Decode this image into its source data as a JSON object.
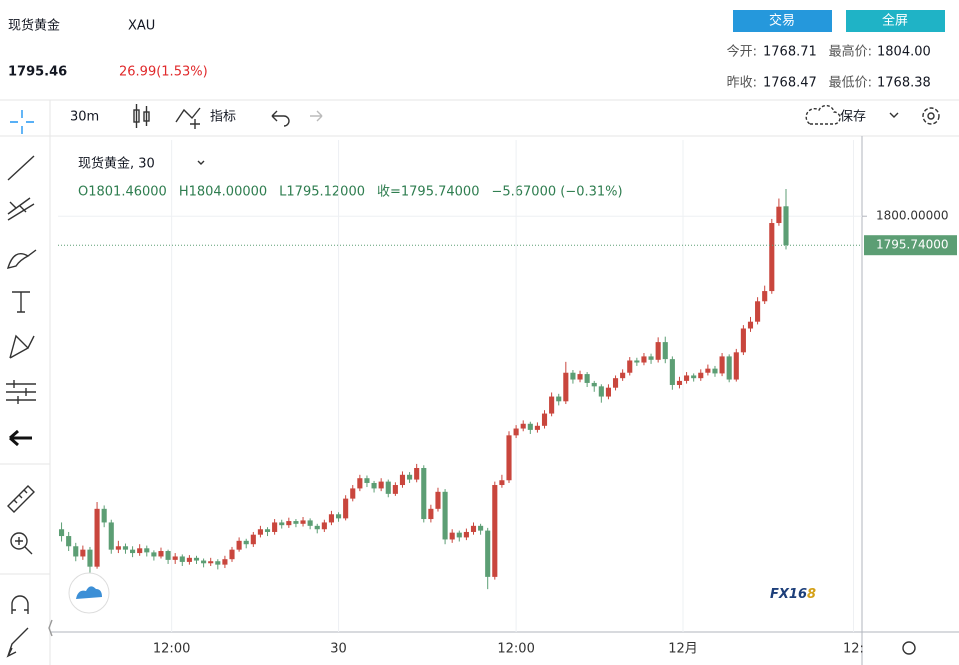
{
  "header": {
    "name": "现货黄金",
    "symbol": "XAU",
    "price": "1795.46",
    "change": "26.99(1.53%)",
    "buttons": [
      "交易",
      "全屏"
    ],
    "stats": [
      [
        "今开:",
        "1768.71",
        "最高价:",
        "1804.00"
      ],
      [
        "昨收:",
        "1768.47",
        "最低价:",
        "1768.38"
      ]
    ]
  },
  "toolbar": {
    "interval": "30m",
    "indicators": "指标",
    "save": "保存"
  },
  "watermark": [
    "FX16",
    "8"
  ],
  "chart_data": {
    "type": "candlestick",
    "legend_title": "现货黄金, 30",
    "ohlc_labels": [
      "O1801.46000",
      "H1804.00000",
      "L1795.12000",
      "收=1795.74000",
      "−5.67000 (−0.31%)"
    ],
    "x": [
      0,
      1,
      2,
      3,
      4,
      5,
      6,
      7,
      8,
      9,
      10,
      11,
      12,
      13,
      14,
      15,
      16,
      17,
      18,
      19,
      20,
      21,
      22,
      23,
      24,
      25,
      26,
      27,
      28,
      29,
      30,
      31,
      32,
      33,
      34,
      35,
      36,
      37,
      38,
      39,
      40,
      41,
      42,
      43,
      44,
      45,
      46,
      47,
      48,
      49,
      50,
      51,
      52,
      53,
      54,
      55,
      56,
      57,
      58,
      59,
      60,
      61,
      62,
      63,
      64,
      65,
      66,
      67,
      68,
      69,
      70,
      71,
      72,
      73,
      74,
      75,
      76,
      77,
      78,
      79,
      80,
      81,
      82,
      83,
      84,
      85,
      86,
      87,
      88,
      89,
      90,
      91,
      92,
      93,
      94,
      95,
      96,
      97,
      98,
      99,
      100,
      101,
      102
    ],
    "open": [
      1754.0,
      1753.0,
      1751.5,
      1750.0,
      1751.0,
      1748.5,
      1757.0,
      1755.0,
      1751.0,
      1751.5,
      1751.0,
      1750.5,
      1751.2,
      1750.6,
      1750.0,
      1750.8,
      1749.5,
      1750.0,
      1749.2,
      1749.8,
      1749.4,
      1749.0,
      1749.3,
      1748.8,
      1749.6,
      1751.0,
      1752.3,
      1751.8,
      1753.2,
      1754.0,
      1753.6,
      1755.0,
      1754.6,
      1755.2,
      1754.8,
      1755.3,
      1754.5,
      1754.0,
      1755.0,
      1756.2,
      1755.6,
      1758.5,
      1760.0,
      1761.5,
      1760.8,
      1760.0,
      1761.0,
      1759.2,
      1760.5,
      1762.0,
      1761.3,
      1763.0,
      1755.5,
      1757.0,
      1759.5,
      1752.5,
      1753.5,
      1752.8,
      1753.6,
      1754.5,
      1753.8,
      1747.0,
      1760.5,
      1761.2,
      1767.8,
      1768.8,
      1769.5,
      1768.6,
      1769.2,
      1771.0,
      1773.5,
      1772.8,
      1777.0,
      1776.0,
      1776.8,
      1775.5,
      1775.0,
      1773.5,
      1774.8,
      1776.2,
      1777.0,
      1778.8,
      1778.5,
      1779.4,
      1778.9,
      1781.5,
      1779.0,
      1775.2,
      1775.8,
      1776.6,
      1776.2,
      1777.0,
      1777.6,
      1776.9,
      1779.4,
      1776.0,
      1780.0,
      1783.5,
      1784.5,
      1787.5,
      1789.0,
      1799.0,
      1801.46
    ],
    "high": [
      1755.0,
      1753.6,
      1752.0,
      1751.6,
      1751.4,
      1758.0,
      1757.5,
      1755.4,
      1752.3,
      1751.9,
      1751.5,
      1751.8,
      1751.6,
      1750.9,
      1751.3,
      1751.0,
      1750.5,
      1750.3,
      1750.2,
      1750.1,
      1749.7,
      1749.8,
      1749.6,
      1750.1,
      1751.4,
      1752.8,
      1752.6,
      1753.6,
      1754.5,
      1754.3,
      1755.5,
      1755.4,
      1755.7,
      1755.5,
      1755.8,
      1755.6,
      1754.8,
      1755.4,
      1756.7,
      1756.5,
      1759.0,
      1760.5,
      1762.0,
      1761.9,
      1761.1,
      1761.5,
      1761.3,
      1760.9,
      1762.5,
      1762.4,
      1763.6,
      1763.4,
      1757.6,
      1760.1,
      1759.9,
      1754.0,
      1753.8,
      1754.1,
      1755.0,
      1754.8,
      1754.2,
      1761.0,
      1762.0,
      1768.4,
      1769.3,
      1770.0,
      1769.8,
      1769.7,
      1771.5,
      1774.1,
      1773.9,
      1778.6,
      1777.4,
      1777.3,
      1777.1,
      1775.8,
      1775.3,
      1775.3,
      1776.6,
      1777.5,
      1779.3,
      1779.2,
      1779.9,
      1779.8,
      1782.2,
      1782.3,
      1779.4,
      1776.4,
      1777.1,
      1776.9,
      1777.5,
      1778.2,
      1778.0,
      1779.9,
      1779.7,
      1780.5,
      1784.0,
      1785.2,
      1788.1,
      1789.8,
      1799.6,
      1802.6,
      1804.0
    ],
    "low": [
      1752.2,
      1750.8,
      1749.3,
      1749.5,
      1747.6,
      1748.2,
      1754.3,
      1750.4,
      1750.5,
      1750.4,
      1749.9,
      1750.1,
      1750.0,
      1749.4,
      1749.7,
      1748.9,
      1748.9,
      1748.6,
      1748.8,
      1748.9,
      1748.4,
      1748.6,
      1748.1,
      1748.3,
      1749.2,
      1750.7,
      1751.2,
      1751.4,
      1752.8,
      1753.0,
      1753.2,
      1754.1,
      1754.2,
      1754.3,
      1754.4,
      1754.0,
      1753.4,
      1753.6,
      1754.6,
      1755.1,
      1755.3,
      1758.1,
      1759.6,
      1760.2,
      1759.4,
      1759.6,
      1758.7,
      1758.9,
      1760.1,
      1760.8,
      1760.9,
      1755.0,
      1755.0,
      1756.6,
      1751.8,
      1752.0,
      1752.2,
      1752.4,
      1753.2,
      1753.2,
      1745.2,
      1746.6,
      1760.1,
      1760.8,
      1767.4,
      1768.4,
      1768.0,
      1768.2,
      1768.8,
      1770.6,
      1772.2,
      1772.4,
      1775.4,
      1775.6,
      1774.9,
      1774.2,
      1772.6,
      1773.1,
      1774.4,
      1775.8,
      1776.6,
      1778.0,
      1778.1,
      1778.3,
      1778.5,
      1778.4,
      1774.5,
      1774.7,
      1775.4,
      1775.7,
      1775.8,
      1776.6,
      1776.4,
      1776.5,
      1775.6,
      1775.7,
      1779.6,
      1783.0,
      1784.1,
      1787.1,
      1788.6,
      1798.6,
      1795.12
    ],
    "close": [
      1753.0,
      1751.5,
      1750.0,
      1751.0,
      1748.5,
      1757.0,
      1755.0,
      1751.0,
      1751.5,
      1751.0,
      1750.5,
      1751.2,
      1750.6,
      1750.0,
      1750.8,
      1749.5,
      1750.0,
      1749.2,
      1749.8,
      1749.4,
      1749.0,
      1749.3,
      1748.8,
      1749.6,
      1751.0,
      1752.3,
      1751.8,
      1753.2,
      1754.0,
      1753.6,
      1755.0,
      1754.6,
      1755.2,
      1754.8,
      1755.3,
      1754.5,
      1754.0,
      1755.0,
      1756.2,
      1755.6,
      1758.5,
      1760.0,
      1761.5,
      1760.8,
      1760.0,
      1761.0,
      1759.2,
      1760.5,
      1762.0,
      1761.3,
      1763.0,
      1755.5,
      1757.0,
      1759.5,
      1752.5,
      1753.5,
      1752.8,
      1753.6,
      1754.5,
      1753.8,
      1747.0,
      1760.5,
      1761.2,
      1767.8,
      1768.8,
      1769.5,
      1768.6,
      1769.2,
      1771.0,
      1773.5,
      1772.8,
      1777.0,
      1776.0,
      1776.8,
      1775.5,
      1775.0,
      1773.5,
      1774.8,
      1776.2,
      1777.0,
      1778.8,
      1778.5,
      1779.4,
      1778.9,
      1781.5,
      1779.0,
      1775.2,
      1775.8,
      1776.6,
      1776.2,
      1777.0,
      1777.6,
      1776.9,
      1779.4,
      1776.0,
      1780.0,
      1783.5,
      1784.5,
      1787.5,
      1789.0,
      1799.0,
      1801.4,
      1795.74
    ],
    "xlim": [
      -0.5,
      112.7
    ],
    "xticks": [
      {
        "value": 15.5,
        "label": "12:00"
      },
      {
        "value": 39,
        "label": "30"
      },
      {
        "value": 64,
        "label": "12:00"
      },
      {
        "value": 87.5,
        "label": "12月"
      },
      {
        "value": 111.5,
        "label": "12:"
      }
    ],
    "ylim": [
      1738.9,
      1811.2
    ],
    "yticks": [
      {
        "value": 1800,
        "label": "1800.00000"
      }
    ],
    "last_price": {
      "value": 1795.74,
      "label": "1795.74000"
    },
    "grid": true,
    "up_color": "#c9463d",
    "down_color": "#5c9e74"
  }
}
